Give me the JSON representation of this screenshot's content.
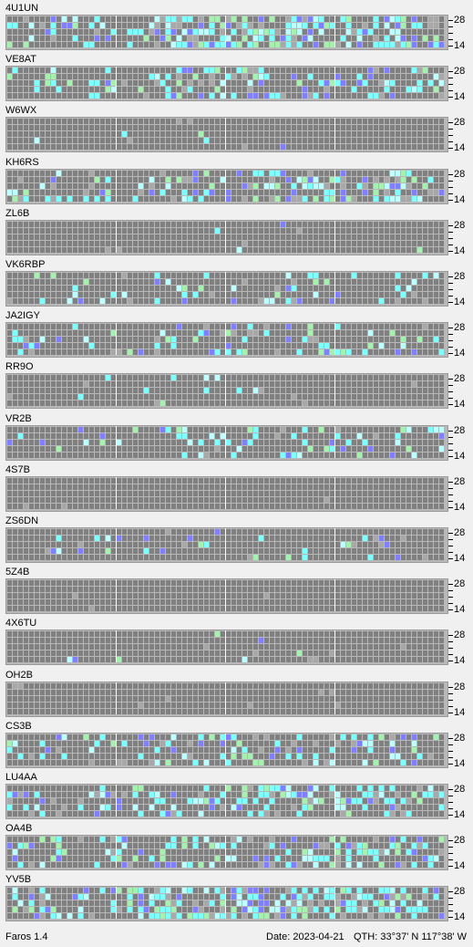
{
  "beacons": [
    {
      "call": "4U1UN",
      "intensity": 0.8
    },
    {
      "call": "VE8AT",
      "intensity": 0.5
    },
    {
      "call": "W6WX",
      "intensity": 0.02
    },
    {
      "call": "KH6RS",
      "intensity": 0.6
    },
    {
      "call": "ZL6B",
      "intensity": 0.02
    },
    {
      "call": "VK6RBP",
      "intensity": 0.2
    },
    {
      "call": "JA2IGY",
      "intensity": 0.3
    },
    {
      "call": "RR9O",
      "intensity": 0.05
    },
    {
      "call": "VR2B",
      "intensity": 0.25
    },
    {
      "call": "4S7B",
      "intensity": 0.0
    },
    {
      "call": "ZS6DN",
      "intensity": 0.15
    },
    {
      "call": "5Z4B",
      "intensity": 0.0
    },
    {
      "call": "4X6TU",
      "intensity": 0.02
    },
    {
      "call": "OH2B",
      "intensity": 0.0
    },
    {
      "call": "CS3B",
      "intensity": 0.45
    },
    {
      "call": "LU4AA",
      "intensity": 0.6
    },
    {
      "call": "OA4B",
      "intensity": 0.55
    },
    {
      "call": "YV5B",
      "intensity": 0.75
    }
  ],
  "band_labels": {
    "top": "28",
    "bottom": "14"
  },
  "status": {
    "app_name": "Faros 1.4",
    "date": "Date: 2023-04-21",
    "qth": "QTH: 33°37' N  117°38' W"
  },
  "colors": {
    "cell_empty": "#808080",
    "cell_grid": "#b8b8b8",
    "cell_cyan": "#80ffff",
    "cell_light_cyan": "#c0ffff",
    "cell_green": "#a8f0b0",
    "cell_blue": "#8080ff",
    "cell_gray_mark": "#a8a8a8",
    "hour_divider": "#ffffff"
  }
}
